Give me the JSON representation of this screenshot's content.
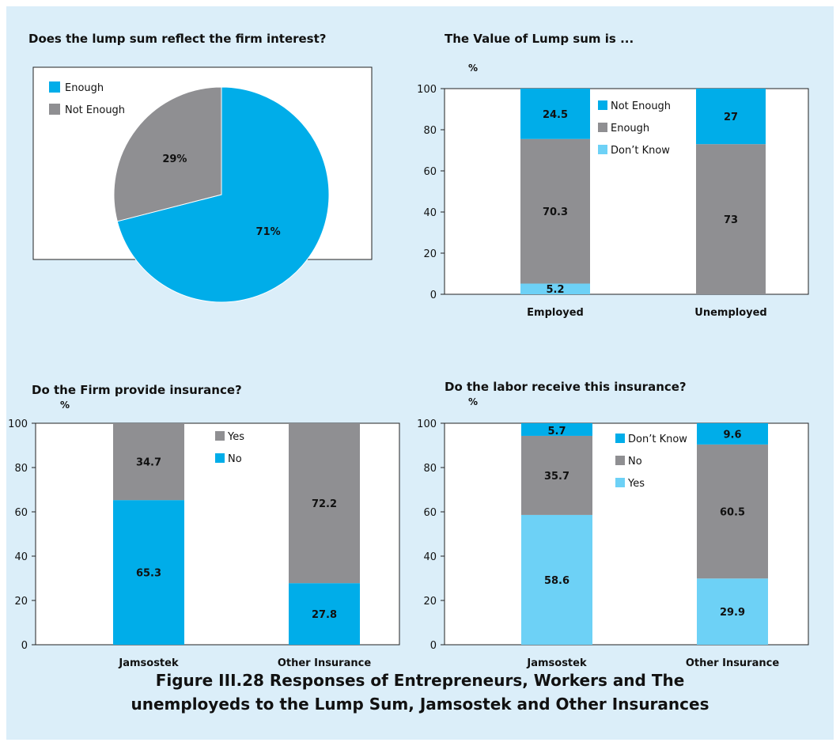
{
  "figure": {
    "caption_line1": "Figure III.28 Responses of Entrepreneurs, Workers and The",
    "caption_line2": "unemployeds to the Lump Sum, Jamsostek and Other Insurances"
  },
  "colors": {
    "background": "#dbeef9",
    "plot_area": "#ffffff",
    "cyan": "#00ade9",
    "gray": "#8f8f92",
    "light_cyan": "#6dd1f6"
  },
  "chart_data": [
    {
      "id": "p1",
      "type": "pie",
      "title": "Does the lump sum reflect the firm interest?",
      "legend_position": "top-left",
      "slices": [
        {
          "name": "Enough",
          "value": 71,
          "label": "71%",
          "color": "#00ade9"
        },
        {
          "name": "Not Enough",
          "value": 29,
          "label": "29%",
          "color": "#8f8f92"
        }
      ]
    },
    {
      "id": "p2",
      "type": "bar",
      "stacked": true,
      "title": "The Value of Lump sum is ...",
      "ylabel": "%",
      "ylim": [
        0,
        100
      ],
      "yticks": [
        0,
        20,
        40,
        60,
        80,
        100
      ],
      "categories": [
        "Employed",
        "Unemployed"
      ],
      "legend_position": "top-center",
      "legend": [
        {
          "name": "Not Enough",
          "color": "#00ade9"
        },
        {
          "name": "Enough",
          "color": "#8f8f92"
        },
        {
          "name": "Don’t Know",
          "color": "#6dd1f6"
        }
      ],
      "series": [
        {
          "name": "Don’t Know",
          "values": [
            5.2,
            0
          ],
          "labels": [
            "5.2",
            ""
          ],
          "color": "#6dd1f6"
        },
        {
          "name": "Enough",
          "values": [
            70.3,
            73
          ],
          "labels": [
            "70.3",
            "73"
          ],
          "color": "#8f8f92"
        },
        {
          "name": "Not Enough",
          "values": [
            24.5,
            27
          ],
          "labels": [
            "24.5",
            "27"
          ],
          "color": "#00ade9"
        }
      ]
    },
    {
      "id": "p3",
      "type": "bar",
      "stacked": true,
      "title": "Do the Firm provide insurance?",
      "ylabel": "%",
      "ylim": [
        0,
        100
      ],
      "yticks": [
        0,
        20,
        40,
        60,
        80,
        100
      ],
      "categories": [
        "Jamsostek",
        "Other Insurance"
      ],
      "legend_position": "top-center",
      "legend": [
        {
          "name": "Yes",
          "color": "#8f8f92"
        },
        {
          "name": "No",
          "color": "#00ade9"
        }
      ],
      "series": [
        {
          "name": "No",
          "values": [
            65.3,
            27.8
          ],
          "labels": [
            "65.3",
            "27.8"
          ],
          "color": "#00ade9"
        },
        {
          "name": "Yes",
          "values": [
            34.7,
            72.2
          ],
          "labels": [
            "34.7",
            "72.2"
          ],
          "color": "#8f8f92"
        }
      ]
    },
    {
      "id": "p4",
      "type": "bar",
      "stacked": true,
      "title": "Do the labor receive this insurance?",
      "ylabel": "%",
      "ylim": [
        0,
        100
      ],
      "yticks": [
        0,
        20,
        40,
        60,
        80,
        100
      ],
      "categories": [
        "Jamsostek",
        "Other Insurance"
      ],
      "legend_position": "top-center",
      "legend": [
        {
          "name": "Don’t Know",
          "color": "#00ade9"
        },
        {
          "name": "No",
          "color": "#8f8f92"
        },
        {
          "name": "Yes",
          "color": "#6dd1f6"
        }
      ],
      "series": [
        {
          "name": "Yes",
          "values": [
            58.6,
            29.9
          ],
          "labels": [
            "58.6",
            "29.9"
          ],
          "color": "#6dd1f6"
        },
        {
          "name": "No",
          "values": [
            35.7,
            60.5
          ],
          "labels": [
            "35.7",
            "60.5"
          ],
          "color": "#8f8f92"
        },
        {
          "name": "Don’t Know",
          "values": [
            5.7,
            9.6
          ],
          "labels": [
            "5.7",
            "9.6"
          ],
          "color": "#00ade9"
        }
      ]
    }
  ]
}
